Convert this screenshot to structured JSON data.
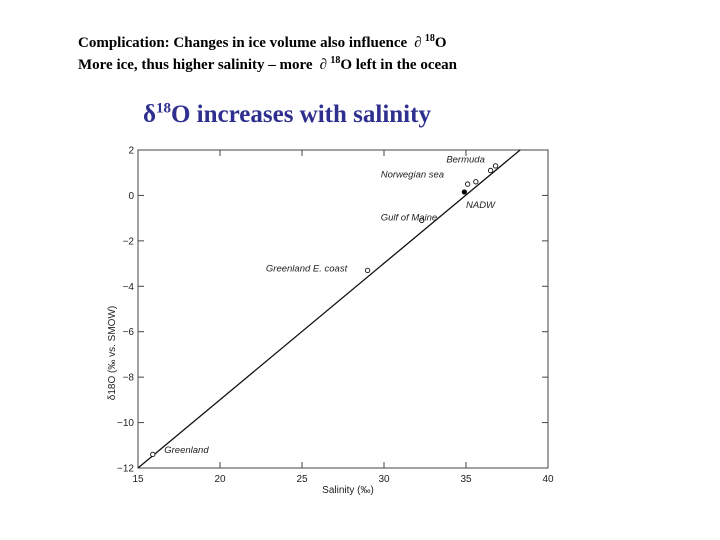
{
  "header": {
    "line1_prefix": "Complication: Changes in ice volume also influence ",
    "line1_symbol": "∂",
    "line1_sup": "18",
    "line1_suffix": "O",
    "line2_prefix": "More ice, thus higher salinity – more ",
    "line2_symbol": "∂",
    "line2_sup": "18",
    "line2_suffix": "O left in the ocean"
  },
  "subtitle": {
    "delta": "δ",
    "sup": "18",
    "text": "O increases with salinity"
  },
  "chart_data": {
    "type": "scatter",
    "title": "",
    "xlabel": "Salinity (‰)",
    "ylabel": "δ18O (‰ vs. SMOW)",
    "xlim": [
      15,
      40
    ],
    "ylim": [
      -12,
      2
    ],
    "xticks": [
      15,
      20,
      25,
      30,
      35,
      40
    ],
    "yticks": [
      2,
      0,
      -2,
      -4,
      -6,
      -8,
      -10,
      -12
    ],
    "xtick_labels": [
      "15",
      "20",
      "25",
      "30",
      "35",
      "40"
    ],
    "ytick_labels": [
      "2",
      "0",
      "−2",
      "−4",
      "−6",
      "−8",
      "−10",
      "−12"
    ],
    "grid": false,
    "line": {
      "x": [
        15,
        38.3
      ],
      "y": [
        -12,
        2
      ]
    },
    "points": [
      {
        "label": "Bermuda",
        "x": 36.5,
        "y": 1.1
      },
      {
        "label": "Bermuda",
        "x": 36.8,
        "y": 1.3
      },
      {
        "label": "Norwegian sea",
        "x": 35.1,
        "y": 0.5
      },
      {
        "label": "Norwegian sea",
        "x": 35.6,
        "y": 0.6
      },
      {
        "label": "NADW",
        "x": 34.9,
        "y": 0.15
      },
      {
        "label": "Gulf of Maine",
        "x": 32.3,
        "y": -1.1
      },
      {
        "label": "Greenland E. coast",
        "x": 29.0,
        "y": -3.3
      },
      {
        "label": "Greenland",
        "x": 15.9,
        "y": -11.4
      }
    ],
    "labels": [
      {
        "text": "Bermuda",
        "x": 33.8,
        "y": 1.45
      },
      {
        "text": "Norwegian sea",
        "x": 29.8,
        "y": 0.8
      },
      {
        "text": "NADW",
        "x": 35.0,
        "y": -0.55
      },
      {
        "text": "Gulf of Maine",
        "x": 29.8,
        "y": -1.1
      },
      {
        "text": "Greenland E. coast",
        "x": 22.8,
        "y": -3.35
      },
      {
        "text": "Greenland",
        "x": 16.6,
        "y": -11.35
      }
    ]
  }
}
